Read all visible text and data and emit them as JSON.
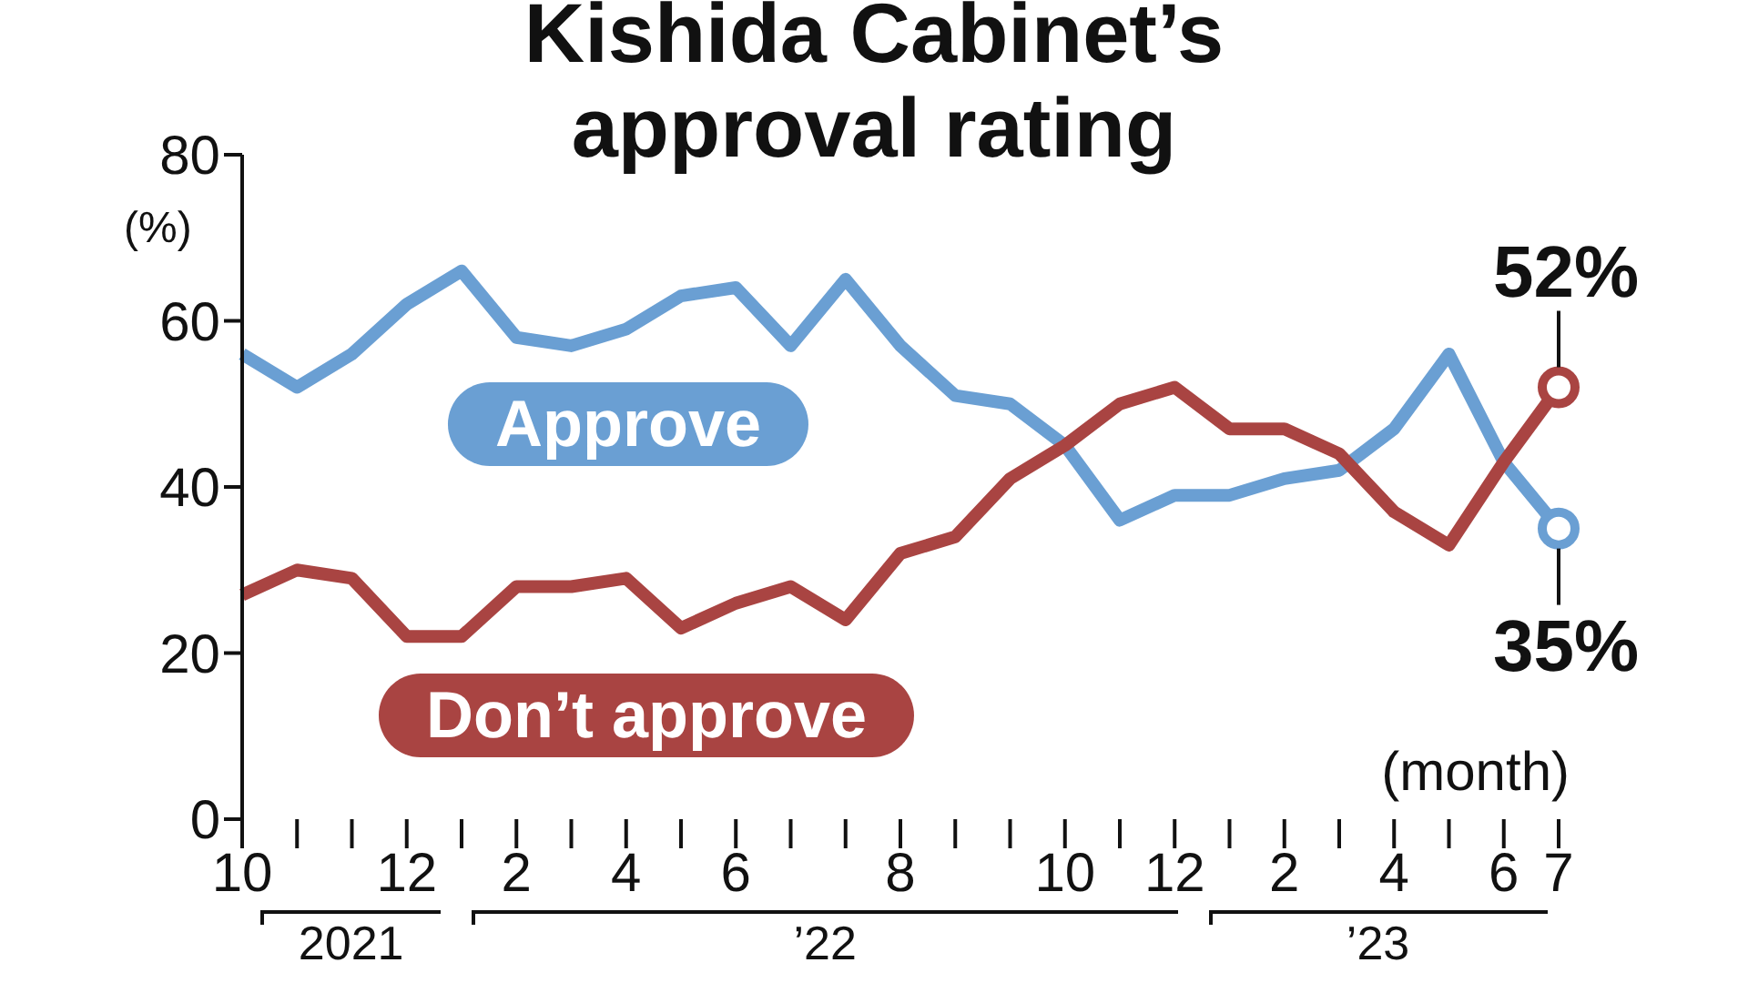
{
  "chart_data": {
    "type": "line",
    "title": "Kishida Cabinet’s\napproval rating",
    "ylabel": "(%)",
    "xlabel": "(month)",
    "categories": [
      "10",
      null,
      null,
      "12",
      null,
      "2",
      null,
      "4",
      null,
      "6",
      null,
      null,
      "8",
      null,
      null,
      "10",
      null,
      "12",
      null,
      "2",
      null,
      "4",
      null,
      "6",
      "7"
    ],
    "ylim": [
      0,
      80
    ],
    "yticks": [
      0,
      20,
      40,
      60,
      80
    ],
    "series": [
      {
        "name": "Approve",
        "color": "#6a9fd3",
        "values": [
          56,
          52,
          56,
          62,
          66,
          58,
          57,
          59,
          63,
          64,
          57,
          65,
          57,
          51,
          50,
          45,
          36,
          39,
          39,
          41,
          42,
          47,
          56,
          43,
          35
        ],
        "value_labels": [
          null,
          null,
          null,
          null,
          null,
          null,
          null,
          null,
          null,
          null,
          null,
          null,
          null,
          null,
          null,
          null,
          null,
          null,
          null,
          null,
          null,
          null,
          null,
          null,
          "35%"
        ]
      },
      {
        "name": "Don’t approve",
        "color": "#a94442",
        "values": [
          27,
          30,
          29,
          22,
          22,
          28,
          28,
          29,
          23,
          26,
          28,
          24,
          32,
          34,
          41,
          45,
          50,
          52,
          47,
          47,
          44,
          37,
          33,
          43,
          52
        ],
        "value_labels": [
          null,
          null,
          null,
          null,
          null,
          null,
          null,
          null,
          null,
          null,
          null,
          null,
          null,
          null,
          null,
          null,
          null,
          null,
          null,
          null,
          null,
          null,
          null,
          null,
          "52%"
        ]
      }
    ],
    "annotations": [
      "2021",
      "’22",
      "’23"
    ]
  }
}
